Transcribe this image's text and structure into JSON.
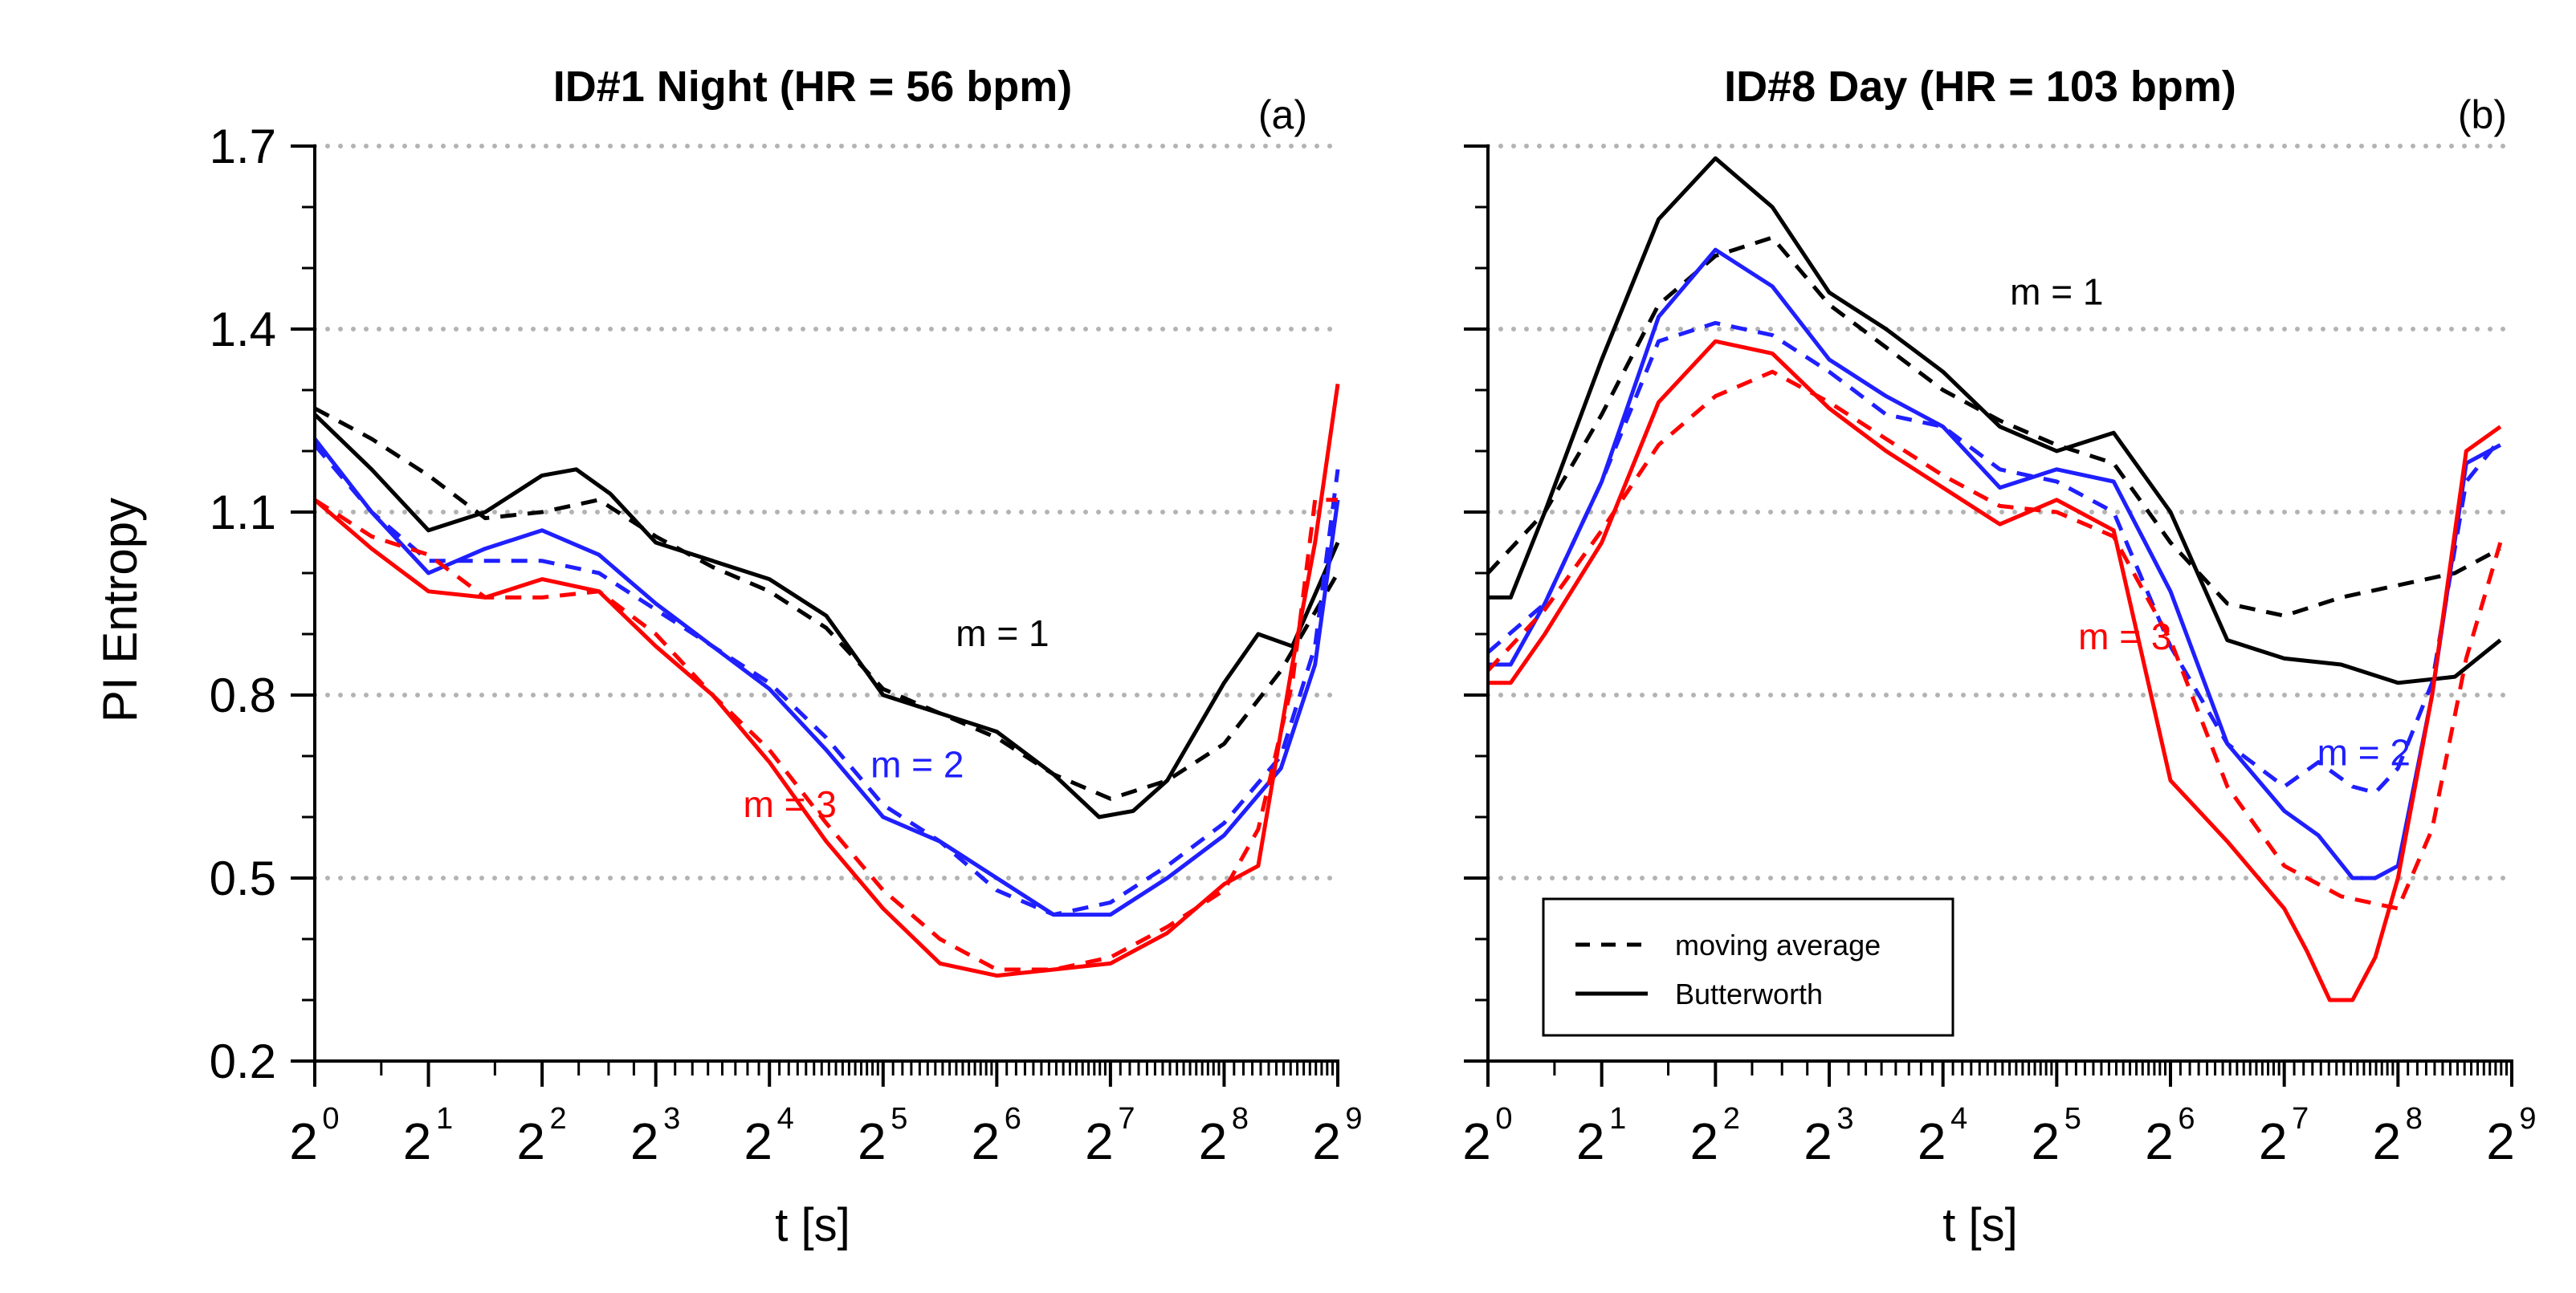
{
  "chart_data": [
    {
      "type": "line",
      "panel_label": "(a)",
      "title": "ID#1 Night (HR = 56 bpm)",
      "xlabel": "t [s]",
      "ylabel": "PI Entropy",
      "x_scale": "log2",
      "x_ticks": [
        "0",
        "1",
        "2",
        "3",
        "4",
        "5",
        "6",
        "7",
        "8",
        "9"
      ],
      "x_tick_base": "2",
      "xlim_log2": [
        0,
        9
      ],
      "ylim": [
        0.2,
        1.7
      ],
      "y_ticks": [
        "0.2",
        "0.5",
        "0.8",
        "1.1",
        "1.4",
        "1.7"
      ],
      "grid": "horizontal dotted",
      "annotations": [
        {
          "text": "m = 1",
          "color": "#000000",
          "x": 6.05,
          "y": 0.88
        },
        {
          "text": "m = 2",
          "color": "#1f1fff",
          "x": 5.3,
          "y": 0.665
        },
        {
          "text": "m = 3",
          "color": "#ff0000",
          "x": 4.18,
          "y": 0.6
        }
      ],
      "series": [
        {
          "name": "m = 1 moving average",
          "m": 1,
          "filter": "moving average",
          "color": "#000000",
          "dash": true,
          "x": [
            0,
            0.5,
            1,
            1.5,
            2,
            2.5,
            3,
            3.5,
            4,
            4.5,
            5,
            5.5,
            6,
            6.5,
            7,
            7.5,
            8,
            8.5,
            9
          ],
          "y": [
            1.27,
            1.22,
            1.16,
            1.09,
            1.1,
            1.12,
            1.06,
            1.01,
            0.97,
            0.91,
            0.81,
            0.77,
            0.73,
            0.67,
            0.63,
            0.66,
            0.72,
            0.84,
            1.0
          ]
        },
        {
          "name": "m = 1 Butterworth",
          "m": 1,
          "filter": "Butterworth",
          "color": "#000000",
          "dash": false,
          "x": [
            0,
            0.5,
            1,
            1.5,
            2,
            2.3,
            2.6,
            3,
            3.5,
            4,
            4.5,
            5,
            5.5,
            6,
            6.5,
            6.9,
            7.2,
            7.5,
            8,
            8.3,
            8.6,
            9
          ],
          "y": [
            1.26,
            1.17,
            1.07,
            1.1,
            1.16,
            1.17,
            1.13,
            1.05,
            1.02,
            0.99,
            0.93,
            0.8,
            0.77,
            0.74,
            0.67,
            0.6,
            0.61,
            0.66,
            0.82,
            0.9,
            0.88,
            1.05
          ]
        },
        {
          "name": "m = 2 moving average",
          "m": 2,
          "filter": "moving average",
          "color": "#1f1fff",
          "dash": true,
          "x": [
            0,
            0.5,
            1,
            1.5,
            2,
            2.5,
            3,
            3.5,
            4,
            4.5,
            5,
            5.5,
            6,
            6.5,
            7,
            7.5,
            8,
            8.5,
            8.8,
            9
          ],
          "y": [
            1.21,
            1.1,
            1.02,
            1.02,
            1.02,
            1.0,
            0.94,
            0.88,
            0.82,
            0.73,
            0.62,
            0.56,
            0.48,
            0.44,
            0.46,
            0.52,
            0.59,
            0.7,
            0.88,
            1.17
          ]
        },
        {
          "name": "m = 2 Butterworth",
          "m": 2,
          "filter": "Butterworth",
          "color": "#1f1fff",
          "dash": false,
          "x": [
            0,
            0.5,
            1,
            1.5,
            2,
            2.5,
            3,
            3.5,
            4,
            4.5,
            5,
            5.5,
            6,
            6.5,
            7,
            7.5,
            8,
            8.5,
            8.8,
            9
          ],
          "y": [
            1.22,
            1.1,
            1.0,
            1.04,
            1.07,
            1.03,
            0.95,
            0.88,
            0.81,
            0.71,
            0.6,
            0.56,
            0.5,
            0.44,
            0.44,
            0.5,
            0.57,
            0.68,
            0.85,
            1.12
          ]
        },
        {
          "name": "m = 3 moving average",
          "m": 3,
          "filter": "moving average",
          "color": "#ff0000",
          "dash": true,
          "x": [
            0,
            0.5,
            1,
            1.5,
            2,
            2.5,
            3,
            3.5,
            4,
            4.5,
            5,
            5.5,
            6,
            6.5,
            7,
            7.5,
            8,
            8.3,
            8.6,
            8.8,
            9
          ],
          "y": [
            1.12,
            1.06,
            1.03,
            0.96,
            0.96,
            0.97,
            0.9,
            0.8,
            0.71,
            0.59,
            0.48,
            0.4,
            0.35,
            0.35,
            0.37,
            0.42,
            0.48,
            0.58,
            0.82,
            1.12,
            1.12
          ]
        },
        {
          "name": "m = 3 Butterworth",
          "m": 3,
          "filter": "Butterworth",
          "color": "#ff0000",
          "dash": false,
          "x": [
            0,
            0.5,
            1,
            1.5,
            2,
            2.5,
            3,
            3.5,
            4,
            4.5,
            5,
            5.5,
            6,
            6.5,
            7,
            7.5,
            8,
            8.3,
            8.6,
            8.8,
            9
          ],
          "y": [
            1.12,
            1.04,
            0.97,
            0.96,
            0.99,
            0.97,
            0.88,
            0.8,
            0.69,
            0.56,
            0.45,
            0.36,
            0.34,
            0.35,
            0.36,
            0.41,
            0.49,
            0.52,
            0.85,
            1.05,
            1.31
          ]
        }
      ]
    },
    {
      "type": "line",
      "panel_label": "(b)",
      "title": "ID#8 Day (HR = 103 bpm)",
      "xlabel": "t [s]",
      "ylabel": "",
      "x_scale": "log2",
      "x_ticks": [
        "0",
        "1",
        "2",
        "3",
        "4",
        "5",
        "6",
        "7",
        "8",
        "9"
      ],
      "x_tick_base": "2",
      "xlim_log2": [
        0,
        9
      ],
      "ylim": [
        0.2,
        1.7
      ],
      "grid": "horizontal dotted",
      "annotations": [
        {
          "text": "m = 1",
          "color": "#000000",
          "x": 5.0,
          "y": 1.44
        },
        {
          "text": "m = 2",
          "color": "#1f1fff",
          "x": 7.7,
          "y": 0.685
        },
        {
          "text": "m = 3",
          "color": "#ff0000",
          "x": 5.6,
          "y": 0.875
        }
      ],
      "legend": {
        "position": "lower-left",
        "entries": [
          {
            "label": "moving average",
            "dash": true
          },
          {
            "label": "Butterworth",
            "dash": false
          }
        ]
      },
      "series": [
        {
          "name": "m = 1 moving average",
          "m": 1,
          "filter": "moving average",
          "color": "#000000",
          "dash": true,
          "x": [
            0,
            0.5,
            1,
            1.5,
            2,
            2.5,
            3,
            3.5,
            4,
            4.5,
            5,
            5.5,
            6,
            6.5,
            7,
            7.5,
            8,
            8.5,
            8.9
          ],
          "y": [
            1.0,
            1.1,
            1.26,
            1.44,
            1.52,
            1.55,
            1.44,
            1.37,
            1.3,
            1.25,
            1.21,
            1.18,
            1.05,
            0.95,
            0.93,
            0.96,
            0.98,
            1.0,
            1.04
          ]
        },
        {
          "name": "m = 1 Butterworth",
          "m": 1,
          "filter": "Butterworth",
          "color": "#000000",
          "dash": false,
          "x": [
            0,
            0.2,
            0.5,
            1,
            1.5,
            2,
            2.5,
            3,
            3.5,
            4,
            4.5,
            5,
            5.5,
            6,
            6.5,
            7,
            7.5,
            8,
            8.5,
            8.9
          ],
          "y": [
            0.96,
            0.96,
            1.1,
            1.35,
            1.58,
            1.68,
            1.6,
            1.46,
            1.4,
            1.33,
            1.24,
            1.2,
            1.23,
            1.1,
            0.89,
            0.86,
            0.85,
            0.82,
            0.83,
            0.89
          ]
        },
        {
          "name": "m = 2 moving average",
          "m": 2,
          "filter": "moving average",
          "color": "#1f1fff",
          "dash": true,
          "x": [
            0,
            0.5,
            1,
            1.5,
            2,
            2.5,
            3,
            3.5,
            4,
            4.5,
            5,
            5.5,
            6,
            6.5,
            7,
            7.3,
            7.6,
            7.8,
            8,
            8.3,
            8.6,
            8.9
          ],
          "y": [
            0.87,
            0.95,
            1.15,
            1.38,
            1.41,
            1.39,
            1.33,
            1.26,
            1.24,
            1.17,
            1.15,
            1.1,
            0.88,
            0.72,
            0.65,
            0.69,
            0.65,
            0.64,
            0.68,
            0.82,
            1.15,
            1.22
          ]
        },
        {
          "name": "m = 2 Butterworth",
          "m": 2,
          "filter": "Butterworth",
          "color": "#1f1fff",
          "dash": false,
          "x": [
            0,
            0.2,
            0.5,
            1,
            1.5,
            2,
            2.5,
            3,
            3.5,
            4,
            4.5,
            5,
            5.5,
            6,
            6.5,
            7,
            7.3,
            7.6,
            7.8,
            8,
            8.3,
            8.6,
            8.9
          ],
          "y": [
            0.85,
            0.85,
            0.95,
            1.15,
            1.42,
            1.53,
            1.47,
            1.35,
            1.29,
            1.24,
            1.14,
            1.17,
            1.15,
            0.97,
            0.72,
            0.61,
            0.57,
            0.5,
            0.5,
            0.52,
            0.8,
            1.18,
            1.21
          ]
        },
        {
          "name": "m = 3 moving average",
          "m": 3,
          "filter": "moving average",
          "color": "#ff0000",
          "dash": true,
          "x": [
            0,
            0.5,
            1,
            1.5,
            2,
            2.5,
            3,
            3.5,
            4,
            4.5,
            5,
            5.5,
            6,
            6.5,
            7,
            7.5,
            8,
            8.3,
            8.6,
            8.9
          ],
          "y": [
            0.84,
            0.94,
            1.07,
            1.21,
            1.29,
            1.33,
            1.28,
            1.22,
            1.16,
            1.11,
            1.1,
            1.06,
            0.89,
            0.65,
            0.52,
            0.47,
            0.45,
            0.58,
            0.86,
            1.05
          ]
        },
        {
          "name": "m = 3 Butterworth",
          "m": 3,
          "filter": "Butterworth",
          "color": "#ff0000",
          "dash": false,
          "x": [
            0,
            0.2,
            0.5,
            1,
            1.5,
            2,
            2.5,
            3,
            3.5,
            4,
            4.5,
            5,
            5.5,
            6,
            6.5,
            7,
            7.2,
            7.4,
            7.6,
            7.8,
            8,
            8.3,
            8.6,
            8.9
          ],
          "y": [
            0.82,
            0.82,
            0.9,
            1.05,
            1.28,
            1.38,
            1.36,
            1.27,
            1.2,
            1.14,
            1.08,
            1.12,
            1.07,
            0.66,
            0.56,
            0.45,
            0.38,
            0.3,
            0.3,
            0.37,
            0.5,
            0.8,
            1.2,
            1.24
          ]
        }
      ]
    }
  ]
}
